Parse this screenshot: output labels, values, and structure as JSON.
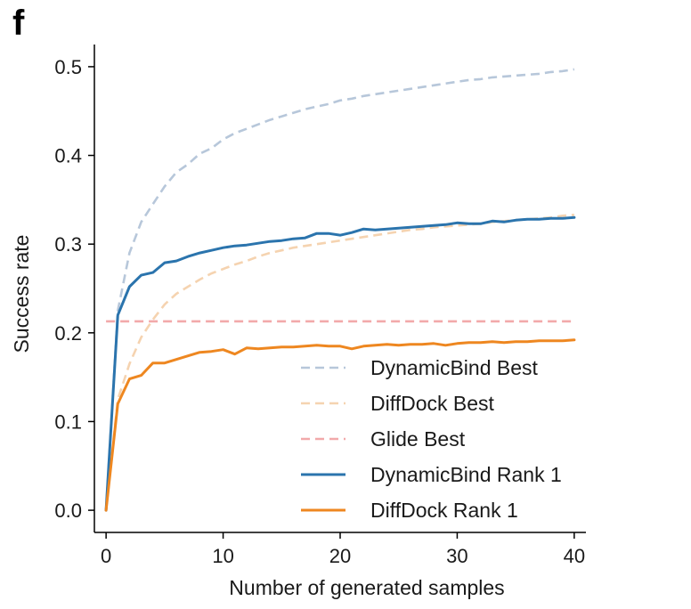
{
  "panel_label": "f",
  "colors": {
    "dynamicbind_best": "#b7c7da",
    "diffdock_best": "#f5d3b0",
    "glide_best": "#f2a9aa",
    "dynamicbind_rank1": "#2b74ad",
    "diffdock_rank1": "#ee8720"
  },
  "chart_data": {
    "type": "line",
    "title": "",
    "xlabel": "Number of generated samples",
    "ylabel": "Success rate",
    "xlim": [
      -1,
      41
    ],
    "ylim": [
      -0.025,
      0.525
    ],
    "xticks": [
      0,
      10,
      20,
      30,
      40
    ],
    "yticks": [
      0.0,
      0.1,
      0.2,
      0.3,
      0.4,
      0.5
    ],
    "xtick_labels": [
      "0",
      "10",
      "20",
      "30",
      "40"
    ],
    "ytick_labels": [
      "0.0",
      "0.1",
      "0.2",
      "0.3",
      "0.4",
      "0.5"
    ],
    "grid": false,
    "legend_position": "lower-right",
    "x": [
      0,
      1,
      2,
      3,
      4,
      5,
      6,
      7,
      8,
      9,
      10,
      11,
      12,
      13,
      14,
      15,
      16,
      17,
      18,
      19,
      20,
      21,
      22,
      23,
      24,
      25,
      26,
      27,
      28,
      29,
      30,
      31,
      32,
      33,
      34,
      35,
      36,
      37,
      38,
      39,
      40
    ],
    "series": [
      {
        "name": "DynamicBind Best",
        "style": "dashed",
        "color": "#b7c7da",
        "values": [
          0.0,
          0.225,
          0.29,
          0.325,
          0.345,
          0.365,
          0.381,
          0.39,
          0.402,
          0.408,
          0.418,
          0.425,
          0.43,
          0.435,
          0.44,
          0.444,
          0.448,
          0.452,
          0.455,
          0.458,
          0.462,
          0.464,
          0.467,
          0.469,
          0.471,
          0.473,
          0.475,
          0.477,
          0.479,
          0.481,
          0.483,
          0.485,
          0.486,
          0.488,
          0.489,
          0.49,
          0.491,
          0.492,
          0.494,
          0.495,
          0.497
        ]
      },
      {
        "name": "DiffDock Best",
        "style": "dashed",
        "color": "#f5d3b0",
        "values": [
          0.0,
          0.125,
          0.165,
          0.195,
          0.215,
          0.232,
          0.244,
          0.252,
          0.26,
          0.267,
          0.272,
          0.277,
          0.281,
          0.286,
          0.29,
          0.293,
          0.296,
          0.298,
          0.3,
          0.302,
          0.304,
          0.306,
          0.308,
          0.31,
          0.312,
          0.314,
          0.316,
          0.317,
          0.319,
          0.32,
          0.321,
          0.322,
          0.323,
          0.325,
          0.326,
          0.327,
          0.328,
          0.329,
          0.33,
          0.332,
          0.333
        ]
      },
      {
        "name": "Glide Best",
        "style": "dashed",
        "color": "#f2a9aa",
        "values": [
          0.213,
          0.213,
          0.213,
          0.213,
          0.213,
          0.213,
          0.213,
          0.213,
          0.213,
          0.213,
          0.213,
          0.213,
          0.213,
          0.213,
          0.213,
          0.213,
          0.213,
          0.213,
          0.213,
          0.213,
          0.213,
          0.213,
          0.213,
          0.213,
          0.213,
          0.213,
          0.213,
          0.213,
          0.213,
          0.213,
          0.213,
          0.213,
          0.213,
          0.213,
          0.213,
          0.213,
          0.213,
          0.213,
          0.213,
          0.213,
          0.213
        ]
      },
      {
        "name": "DynamicBind Rank 1",
        "style": "solid",
        "color": "#2b74ad",
        "values": [
          0.0,
          0.22,
          0.252,
          0.265,
          0.268,
          0.279,
          0.281,
          0.286,
          0.29,
          0.293,
          0.296,
          0.298,
          0.299,
          0.301,
          0.303,
          0.304,
          0.306,
          0.307,
          0.312,
          0.312,
          0.31,
          0.313,
          0.317,
          0.316,
          0.317,
          0.318,
          0.319,
          0.32,
          0.321,
          0.322,
          0.324,
          0.323,
          0.323,
          0.326,
          0.325,
          0.327,
          0.328,
          0.328,
          0.329,
          0.329,
          0.33
        ]
      },
      {
        "name": "DiffDock Rank 1",
        "style": "solid",
        "color": "#ee8720",
        "values": [
          0.0,
          0.12,
          0.148,
          0.152,
          0.166,
          0.166,
          0.17,
          0.174,
          0.178,
          0.179,
          0.181,
          0.176,
          0.183,
          0.182,
          0.183,
          0.184,
          0.184,
          0.185,
          0.186,
          0.185,
          0.185,
          0.182,
          0.185,
          0.186,
          0.187,
          0.186,
          0.187,
          0.187,
          0.188,
          0.186,
          0.188,
          0.189,
          0.189,
          0.19,
          0.189,
          0.19,
          0.19,
          0.191,
          0.191,
          0.191,
          0.192
        ]
      }
    ]
  }
}
